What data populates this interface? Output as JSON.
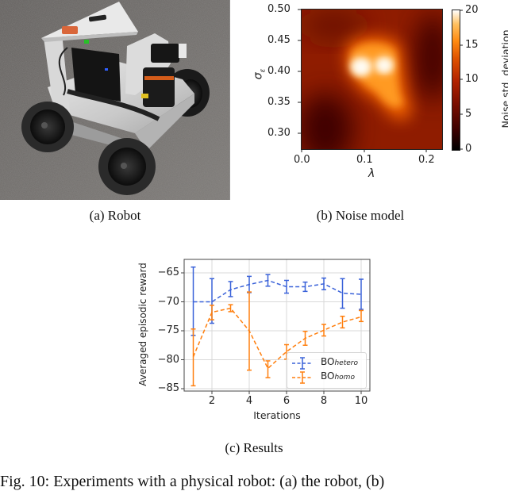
{
  "figure": {
    "subfigures": [
      {
        "id": "a",
        "caption": "(a)  Robot",
        "content": "photo of a four-wheeled robot with a triangular top plate, lidar sensor, black electronics box and cables on a gray carpet"
      },
      {
        "id": "b",
        "caption": "(b)  Noise model"
      },
      {
        "id": "c",
        "caption": "(c)  Results"
      }
    ],
    "main_caption_partial": "Fig. 10: Experiments with a physical robot: (a) the robot, (b)"
  },
  "chart_data": [
    {
      "type": "heatmap",
      "title": "",
      "xlabel": "λ",
      "ylabel": "σ_ε",
      "xlim": [
        0.0,
        0.225
      ],
      "ylim": [
        0.275,
        0.5
      ],
      "xticks": [
        "0.0",
        "0.1",
        "0.2"
      ],
      "yticks": [
        "0.50",
        "0.45",
        "0.40",
        "0.35",
        "0.30"
      ],
      "colorbar": {
        "label": "Noise std. deviation",
        "range": [
          0,
          20
        ],
        "ticks": [
          "20",
          "15",
          "10",
          "5",
          "0"
        ],
        "colormap": "gist_heat"
      },
      "features": [
        {
          "kind": "peak",
          "lambda": 0.095,
          "sigma": 0.41,
          "value": 20
        },
        {
          "kind": "peak",
          "lambda": 0.13,
          "sigma": 0.41,
          "value": 20
        },
        {
          "kind": "ridge",
          "lambda": 0.15,
          "sigma": 0.34,
          "value": 15
        },
        {
          "kind": "background",
          "value": 8
        },
        {
          "kind": "low",
          "lambda": 0.03,
          "sigma": 0.3,
          "value": 4
        },
        {
          "kind": "low",
          "lambda": 0.19,
          "sigma": 0.43,
          "value": 4
        }
      ]
    },
    {
      "type": "line",
      "title": "",
      "xlabel": "Iterations",
      "ylabel": "Averaged episodic reward",
      "xlim": [
        0.6,
        10.4
      ],
      "ylim": [
        -86,
        -63.5
      ],
      "xticks": [
        "2",
        "4",
        "6",
        "8",
        "10"
      ],
      "yticks": [
        "-65",
        "-70",
        "-75",
        "-80",
        "-85"
      ],
      "grid": true,
      "legend_position": "lower right",
      "x": [
        1,
        2,
        3,
        4,
        5,
        6,
        7,
        8,
        9,
        10
      ],
      "series": [
        {
          "name": "BO_hetero",
          "label_main": "BO",
          "label_sub": "hetero",
          "color": "#3a62d9",
          "values": [
            -70.0,
            -70.0,
            -67.9,
            -67.0,
            -66.3,
            -67.4,
            -67.4,
            -66.9,
            -68.5,
            -68.7
          ],
          "err_low": [
            -75.8,
            -73.7,
            -69.1,
            -68.4,
            -67.3,
            -68.5,
            -68.2,
            -67.9,
            -71.1,
            -71.3
          ],
          "err_high": [
            -64.0,
            -66.0,
            -66.5,
            -65.6,
            -65.3,
            -66.3,
            -66.6,
            -65.9,
            -66.0,
            -66.1
          ]
        },
        {
          "name": "BO_homo",
          "label_main": "BO",
          "label_sub": "homo",
          "color": "#ff7f0e",
          "values": [
            -79.5,
            -71.8,
            -71.1,
            -75.0,
            -81.5,
            -78.6,
            -76.3,
            -74.9,
            -73.5,
            -72.6
          ],
          "err_low": [
            -84.5,
            -73.1,
            -71.7,
            -81.8,
            -83.1,
            -79.9,
            -77.5,
            -75.9,
            -74.5,
            -73.4
          ],
          "err_high": [
            -74.7,
            -70.6,
            -70.5,
            -68.3,
            -80.2,
            -77.4,
            -75.1,
            -73.9,
            -72.5,
            -71.5
          ]
        }
      ]
    }
  ]
}
